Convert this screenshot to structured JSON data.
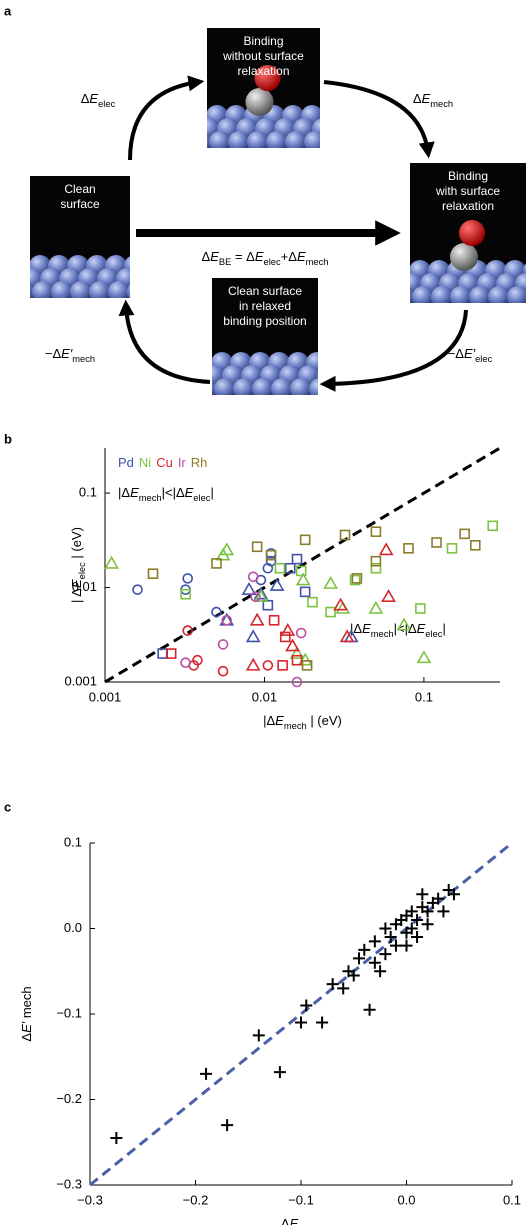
{
  "diagram": {
    "label": "a",
    "boxes": [
      {
        "lines": [
          "Binding",
          "without surface",
          "relaxation"
        ]
      },
      {
        "lines": [
          "Clean",
          "surface"
        ]
      },
      {
        "lines": [
          "Binding",
          "with surface",
          "relaxation"
        ]
      },
      {
        "lines": [
          "Clean surface",
          "in relaxed",
          "binding position"
        ]
      }
    ],
    "arrow_labels": [
      [
        {
          "text": "Δ"
        },
        {
          "text": "E",
          "style": "italic"
        },
        {
          "text": "elec",
          "style": "sub"
        }
      ],
      [
        {
          "text": "Δ"
        },
        {
          "text": "E",
          "style": "italic"
        },
        {
          "text": "mech",
          "style": "sub"
        }
      ],
      [
        {
          "text": "−Δ"
        },
        {
          "text": "E′",
          "style": "italic"
        },
        {
          "text": "mech",
          "style": "sub"
        }
      ],
      [
        {
          "text": "−Δ"
        },
        {
          "text": "E′",
          "style": "italic"
        },
        {
          "text": "elec",
          "style": "sub"
        }
      ]
    ],
    "equation": [
      {
        "text": "Δ"
      },
      {
        "text": "E",
        "style": "italic"
      },
      {
        "text": "BE",
        "style": "sub"
      },
      {
        "text": " = Δ"
      },
      {
        "text": "E",
        "style": "italic"
      },
      {
        "text": "elec",
        "style": "sub"
      },
      {
        "text": "+Δ"
      },
      {
        "text": "E",
        "style": "italic"
      },
      {
        "text": "mech",
        "style": "sub"
      }
    ]
  },
  "chart_data": [
    {
      "type": "scatter",
      "label": "b",
      "xscale": "log",
      "yscale": "log",
      "xlim": [
        0.001,
        0.3
      ],
      "ylim": [
        0.001,
        0.3
      ],
      "xticks": [
        0.001,
        0.01,
        0.1
      ],
      "yticks": [
        0.001,
        0.01,
        0.1
      ],
      "diagonal_line": true,
      "diagonal_color": "#000",
      "xlabel": [
        {
          "text": "|Δ"
        },
        {
          "text": "E",
          "style": "italic"
        },
        {
          "text": "mech",
          "style": "sub"
        },
        {
          "text": " | (eV)"
        }
      ],
      "ylabel": [
        {
          "text": "| Δ"
        },
        {
          "text": "E",
          "style": "italic"
        },
        {
          "text": "elec",
          "style": "sub"
        },
        {
          "text": " | (eV)"
        }
      ],
      "annotations": [
        [
          {
            "text": "|Δ"
          },
          {
            "text": "E",
            "style": "italic"
          },
          {
            "text": "mech",
            "style": "sub"
          },
          {
            "text": "|<|Δ"
          },
          {
            "text": "E",
            "style": "italic"
          },
          {
            "text": "elec",
            "style": "sub"
          },
          {
            "text": "|"
          }
        ],
        [
          {
            "text": "|Δ"
          },
          {
            "text": "E",
            "style": "italic"
          },
          {
            "text": "mech",
            "style": "sub"
          },
          {
            "text": "|<|Δ"
          },
          {
            "text": "E",
            "style": "italic"
          },
          {
            "text": "elec",
            "style": "sub"
          },
          {
            "text": "|"
          }
        ]
      ],
      "series": [
        {
          "name": "Pd",
          "color": "#3f51a8",
          "x": [
            0.0016,
            0.0033,
            0.0032,
            0.005,
            0.0095,
            0.0105,
            0.011,
            0.011,
            0.0023,
            0.0105,
            0.016,
            0.018,
            0.0145,
            0.008,
            0.0095,
            0.0058,
            0.0085,
            0.012,
            0.035
          ],
          "values": [
            0.0095,
            0.0125,
            0.0095,
            0.0055,
            0.012,
            0.016,
            0.019,
            0.023,
            0.002,
            0.0065,
            0.02,
            0.009,
            0.016,
            0.0095,
            0.0085,
            0.0045,
            0.003,
            0.0105,
            0.003
          ],
          "markers": [
            "circle",
            "circle",
            "circle",
            "circle",
            "circle",
            "circle",
            "circle",
            "circle",
            "square",
            "square",
            "square",
            "square",
            "square",
            "triangle",
            "triangle",
            "triangle",
            "triangle",
            "triangle",
            "triangle"
          ]
        },
        {
          "name": "Ni",
          "color": "#7cc242",
          "x": [
            0.0011,
            0.0058,
            0.0055,
            0.0095,
            0.0175,
            0.026,
            0.05,
            0.075,
            0.1,
            0.018,
            0.031,
            0.016,
            0.0032,
            0.0125,
            0.017,
            0.02,
            0.05,
            0.095,
            0.15,
            0.27,
            0.037,
            0.026
          ],
          "values": [
            0.018,
            0.025,
            0.022,
            0.008,
            0.012,
            0.011,
            0.006,
            0.004,
            0.0018,
            0.0017,
            0.006,
            0.002,
            0.0085,
            0.016,
            0.015,
            0.007,
            0.016,
            0.006,
            0.026,
            0.045,
            0.012,
            0.0055
          ],
          "markers": [
            "triangle",
            "triangle",
            "triangle",
            "triangle",
            "triangle",
            "triangle",
            "triangle",
            "triangle",
            "triangle",
            "triangle",
            "triangle",
            "triangle",
            "square",
            "square",
            "square",
            "square",
            "square",
            "square",
            "square",
            "square",
            "square",
            "square"
          ]
        },
        {
          "name": "Cu",
          "color": "#d7262b",
          "x": [
            0.0033,
            0.0036,
            0.0055,
            0.0105,
            0.0038,
            0.0026,
            0.0115,
            0.013,
            0.016,
            0.0135,
            0.009,
            0.0085,
            0.014,
            0.015,
            0.03,
            0.058,
            0.06,
            0.033
          ],
          "values": [
            0.0035,
            0.0015,
            0.0013,
            0.0015,
            0.0017,
            0.002,
            0.0045,
            0.0015,
            0.0017,
            0.003,
            0.0045,
            0.0015,
            0.0035,
            0.0024,
            0.0065,
            0.025,
            0.008,
            0.003
          ],
          "markers": [
            "circle",
            "circle",
            "circle",
            "circle",
            "circle",
            "square",
            "square",
            "square",
            "square",
            "square",
            "triangle",
            "triangle",
            "triangle",
            "triangle",
            "triangle",
            "triangle",
            "triangle",
            "triangle"
          ]
        },
        {
          "name": "Ir",
          "color": "#b84fa6",
          "x": [
            0.0055,
            0.0085,
            0.0088,
            0.017,
            0.016,
            0.0032,
            0.0058
          ],
          "values": [
            0.0025,
            0.013,
            0.008,
            0.0033,
            0.001,
            0.0016,
            0.0045
          ],
          "markers": [
            "circle",
            "circle",
            "circle",
            "circle",
            "circle",
            "circle",
            "circle"
          ]
        },
        {
          "name": "Rh",
          "color": "#8b7b2c",
          "x": [
            0.002,
            0.009,
            0.018,
            0.032,
            0.05,
            0.08,
            0.12,
            0.18,
            0.21,
            0.05,
            0.0185,
            0.011,
            0.038,
            0.005
          ],
          "values": [
            0.014,
            0.027,
            0.032,
            0.036,
            0.039,
            0.026,
            0.03,
            0.037,
            0.028,
            0.019,
            0.0015,
            0.022,
            0.0125,
            0.018
          ],
          "markers": [
            "square",
            "square",
            "square",
            "square",
            "square",
            "square",
            "square",
            "square",
            "square",
            "square",
            "square",
            "square",
            "square",
            "square"
          ]
        }
      ]
    },
    {
      "type": "scatter",
      "label": "c",
      "xlim": [
        -0.3,
        0.1
      ],
      "ylim": [
        -0.3,
        0.1
      ],
      "xticks": [
        {
          "value": -0.3,
          "label": "−0.3"
        },
        {
          "value": -0.2,
          "label": "−0.2"
        },
        {
          "value": -0.1,
          "label": "−0.1"
        },
        {
          "value": 0,
          "label": "0.0"
        },
        0.1
      ],
      "yticks": [
        {
          "value": -0.3,
          "label": "−0.3"
        },
        {
          "value": -0.2,
          "label": "−0.2"
        },
        {
          "value": -0.1,
          "label": "−0.1"
        },
        {
          "value": 0,
          "label": "0.0"
        },
        0.1
      ],
      "diagonal_line": true,
      "diagonal_color": "#4a5fa8",
      "xlabel": [
        {
          "text": "Δ"
        },
        {
          "text": "E",
          "style": "italic"
        },
        {
          "text": "mech",
          "style": "sub"
        }
      ],
      "ylabel": [
        {
          "text": "Δ"
        },
        {
          "text": "E′",
          "style": "italic"
        },
        {
          "text": " mech"
        }
      ],
      "series": [
        {
          "color": "#000",
          "marker": "plus",
          "x": [
            -0.275,
            -0.19,
            -0.17,
            -0.14,
            -0.12,
            -0.1,
            -0.095,
            -0.08,
            -0.07,
            -0.06,
            -0.055,
            -0.05,
            -0.035,
            -0.04,
            -0.03,
            -0.03,
            -0.02,
            -0.02,
            -0.015,
            -0.01,
            -0.01,
            -0.005,
            0,
            0,
            0.005,
            0.005,
            0.01,
            0.01,
            0.015,
            0.02,
            0.02,
            0.025,
            0.03,
            0.035,
            0.04,
            0.045,
            0.015,
            -0.025,
            -0.045,
            0
          ],
          "values": [
            -0.245,
            -0.17,
            -0.23,
            -0.125,
            -0.168,
            -0.11,
            -0.09,
            -0.11,
            -0.065,
            -0.07,
            -0.05,
            -0.055,
            -0.095,
            -0.025,
            -0.04,
            -0.015,
            -0.03,
            0,
            -0.01,
            0.005,
            -0.02,
            0.01,
            -0.005,
            0.015,
            0,
            0.02,
            0.01,
            -0.01,
            0.025,
            0.02,
            0.005,
            0.03,
            0.035,
            0.02,
            0.045,
            0.04,
            0.04,
            -0.05,
            -0.035,
            -0.02
          ]
        }
      ]
    }
  ]
}
